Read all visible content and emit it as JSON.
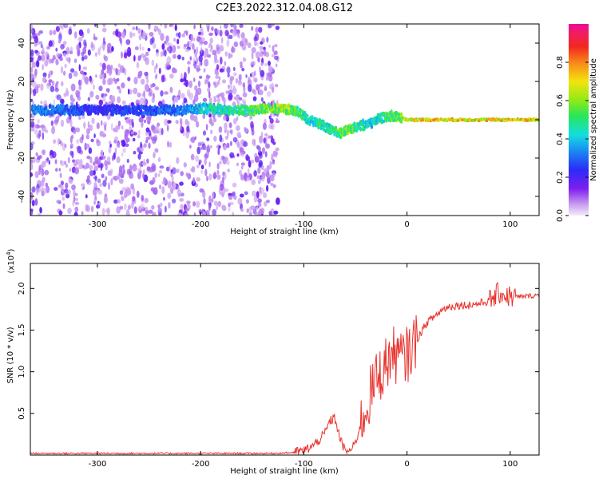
{
  "title": "C2E3.2022.312.04.08.G12",
  "chart_data": [
    {
      "type": "heatmap",
      "xlabel": "Height of straight line (km)",
      "ylabel": "Frequency (Hz)",
      "xlim": [
        -365,
        128
      ],
      "ylim": [
        -50,
        50
      ],
      "xticks": [
        -300,
        -200,
        -100,
        0,
        100
      ],
      "yticks": [
        -40,
        -20,
        0,
        20,
        40
      ],
      "colorbar": {
        "label": "Normalized spectral amplitude",
        "range": [
          0,
          1
        ],
        "ticks": [
          0.0,
          0.2,
          0.4,
          0.6,
          0.8
        ],
        "colormap": "rainbow (white/lavender → purple → blue → cyan → green → yellow → red → magenta)"
      },
      "ridge": {
        "description": "Peak amplitude trace (Hz) vs height (km)",
        "x": [
          -350,
          -300,
          -250,
          -215,
          -200,
          -170,
          -150,
          -135,
          -120,
          -105,
          -95,
          -85,
          -75,
          -65,
          -55,
          -45,
          -35,
          -25,
          -15,
          -5,
          0,
          30,
          60,
          90,
          128
        ],
        "y": [
          5,
          5,
          5,
          5,
          6,
          5,
          5,
          6,
          6,
          4,
          0,
          -2,
          -5,
          -7,
          -5,
          -3,
          -2,
          1,
          2,
          1,
          0,
          0,
          0,
          0,
          0
        ],
        "amplitude": [
          0.35,
          0.25,
          0.3,
          0.35,
          0.45,
          0.5,
          0.55,
          0.6,
          0.65,
          0.55,
          0.45,
          0.5,
          0.5,
          0.55,
          0.6,
          0.5,
          0.45,
          0.5,
          0.55,
          0.6,
          0.75,
          0.75,
          0.75,
          0.75,
          0.75
        ]
      },
      "noise_region_km": [
        -365,
        -125
      ],
      "grid": false
    },
    {
      "type": "line",
      "xlabel": "Height of straight line (km)",
      "ylabel": "SNR (10 * v/v)",
      "y_multiplier": "(x10^4)",
      "xlim": [
        -365,
        128
      ],
      "ylim": [
        0,
        2.3
      ],
      "xticks": [
        -300,
        -200,
        -100,
        0,
        100
      ],
      "yticks": [
        0.5,
        1.0,
        1.5,
        2.0
      ],
      "series": [
        {
          "color": "#e8312c",
          "x": [
            -365,
            -300,
            -200,
            -130,
            -110,
            -100,
            -90,
            -80,
            -75,
            -70,
            -65,
            -60,
            -55,
            -50,
            -45,
            -40,
            -35,
            -30,
            -25,
            -20,
            -15,
            -10,
            -5,
            0,
            5,
            10,
            15,
            20,
            25,
            30,
            35,
            40,
            50,
            60,
            70,
            80,
            85,
            90,
            95,
            100,
            110,
            128
          ],
          "y": [
            0.02,
            0.02,
            0.02,
            0.02,
            0.03,
            0.05,
            0.12,
            0.25,
            0.4,
            0.45,
            0.2,
            0.05,
            0.05,
            0.15,
            0.35,
            0.55,
            0.75,
            0.9,
            1.0,
            1.1,
            1.2,
            1.2,
            1.15,
            1.2,
            1.3,
            1.4,
            1.5,
            1.6,
            1.65,
            1.7,
            1.75,
            1.78,
            1.8,
            1.8,
            1.82,
            1.85,
            1.9,
            1.95,
            1.92,
            1.9,
            1.9,
            1.92
          ]
        }
      ],
      "grid": false
    }
  ]
}
